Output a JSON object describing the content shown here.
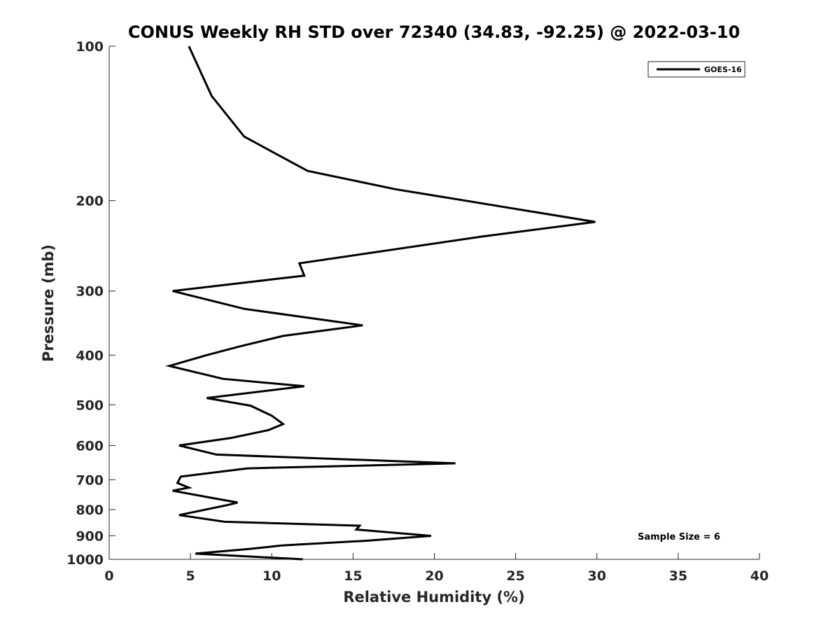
{
  "chart_data": {
    "type": "line",
    "title": "CONUS Weekly RH STD over 72340 (34.83, -92.25) @ 2022-03-10",
    "xlabel": "Relative Humidity (%)",
    "ylabel": "Pressure (mb)",
    "xlim": [
      0,
      40
    ],
    "ylim": [
      100,
      1000
    ],
    "y_scale": "log",
    "y_reversed": false,
    "x_ticks": [
      0,
      5,
      10,
      15,
      20,
      25,
      30,
      35,
      40
    ],
    "y_ticks": [
      100,
      200,
      300,
      400,
      500,
      600,
      700,
      800,
      900,
      1000
    ],
    "grid": false,
    "legend": {
      "position": "top-right",
      "entries": [
        "GOES-16"
      ]
    },
    "annotation": "Sample Size = 6",
    "series": [
      {
        "name": "GOES-16",
        "color": "#000000",
        "points": [
          [
            4.9,
            100
          ],
          [
            6.3,
            125
          ],
          [
            8.3,
            150
          ],
          [
            12.2,
            175
          ],
          [
            17.6,
            190
          ],
          [
            29.9,
            220
          ],
          [
            22.9,
            235
          ],
          [
            11.7,
            265
          ],
          [
            12.0,
            280
          ],
          [
            3.9,
            300
          ],
          [
            8.3,
            325
          ],
          [
            15.6,
            350
          ],
          [
            10.7,
            367
          ],
          [
            8.0,
            385
          ],
          [
            6.0,
            400
          ],
          [
            3.7,
            420
          ],
          [
            7.0,
            445
          ],
          [
            12.0,
            460
          ],
          [
            6.0,
            485
          ],
          [
            8.7,
            502
          ],
          [
            10.0,
            525
          ],
          [
            10.7,
            545
          ],
          [
            9.8,
            560
          ],
          [
            7.5,
            580
          ],
          [
            4.3,
            600
          ],
          [
            6.6,
            625
          ],
          [
            21.3,
            650
          ],
          [
            8.5,
            665
          ],
          [
            4.4,
            690
          ],
          [
            4.2,
            710
          ],
          [
            4.9,
            725
          ],
          [
            3.9,
            735
          ],
          [
            6.4,
            760
          ],
          [
            7.9,
            775
          ],
          [
            7.2,
            785
          ],
          [
            4.3,
            820
          ],
          [
            7.1,
            845
          ],
          [
            15.4,
            860
          ],
          [
            15.2,
            875
          ],
          [
            19.8,
            900
          ],
          [
            15.8,
            920
          ],
          [
            10.6,
            940
          ],
          [
            8.6,
            955
          ],
          [
            5.3,
            975
          ],
          [
            11.9,
            1000
          ]
        ]
      }
    ]
  }
}
